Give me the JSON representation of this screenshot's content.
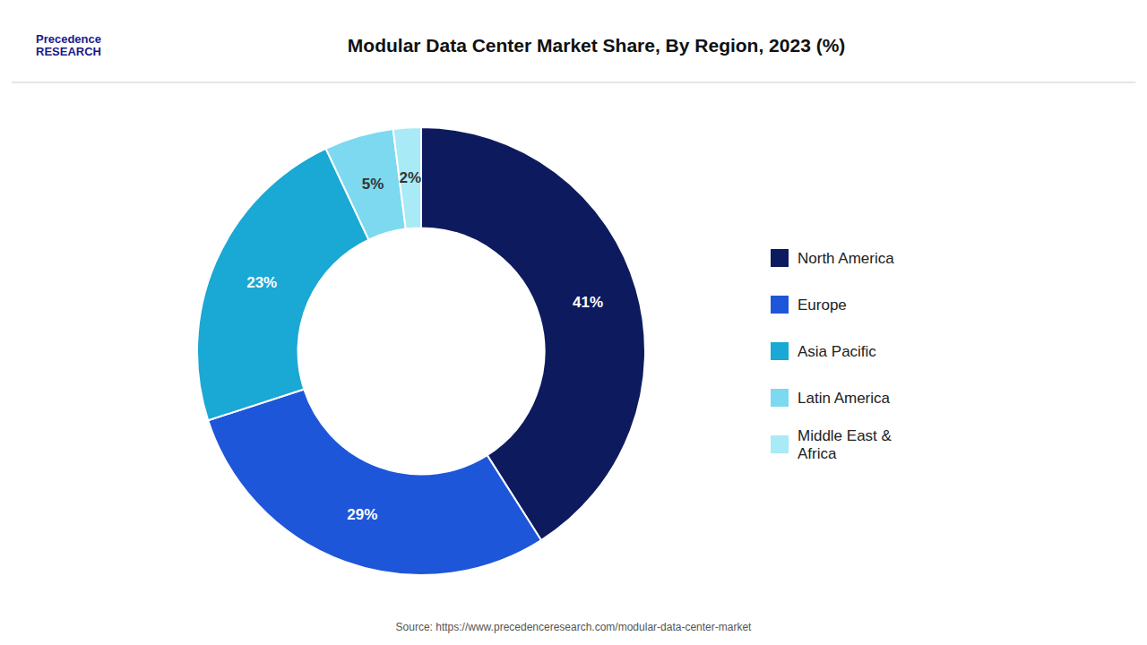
{
  "chart_data": {
    "type": "donut",
    "title": "Modular Data Center Market Share, By Region, 2023 (%)",
    "categories": [
      "North America",
      "Europe",
      "Asia Pacific",
      "Latin America",
      "Middle East &\nAfrica"
    ],
    "values": [
      41,
      29,
      23,
      5,
      2
    ],
    "value_labels": [
      "41%",
      "29%",
      "23%",
      "5%",
      "2%"
    ],
    "data_labels": true,
    "colors": [
      "#0d1b5e",
      "#1e56d9",
      "#1aa8d4",
      "#7dd9ef",
      "#a8eaf5"
    ],
    "legend": "right",
    "annotations": [
      "Precedence\nRESEARCH",
      "Source: https://www.precedenceresearch.com/modular-data-center-market"
    ]
  }
}
